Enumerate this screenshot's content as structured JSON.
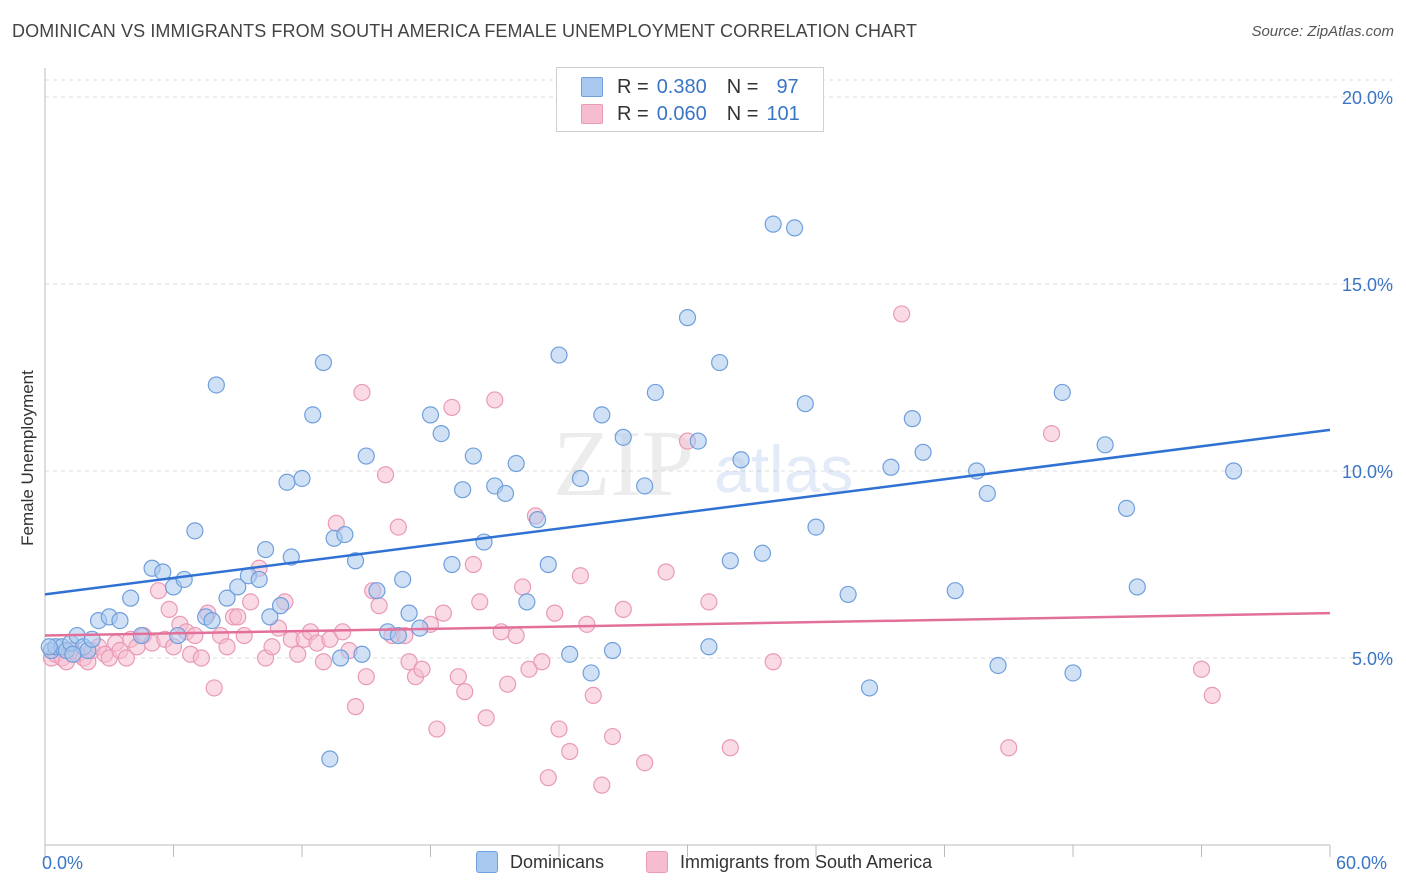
{
  "header": {
    "title": "DOMINICAN VS IMMIGRANTS FROM SOUTH AMERICA FEMALE UNEMPLOYMENT CORRELATION CHART",
    "source": "Source: ZipAtlas.com"
  },
  "stats": {
    "r_label": "R =",
    "n_label": "N =",
    "rows": [
      {
        "r": "0.380",
        "n": "97"
      },
      {
        "r": "0.060",
        "n": "101"
      }
    ]
  },
  "watermark": {
    "zip": "ZIP",
    "atlas": "atlas"
  },
  "colors": {
    "blue_fill": "#a9c8ef",
    "blue_stroke": "#6f9fdc",
    "blue_line": "#2f72d4",
    "pink_fill": "#f6bcd0",
    "pink_stroke": "#e99ab6",
    "pink_line": "#e2709a",
    "tick_text": "#3a75c4",
    "grid": "#dddddd"
  },
  "chart_data": {
    "type": "scatter",
    "title": "DOMINICAN VS IMMIGRANTS FROM SOUTH AMERICA FEMALE UNEMPLOYMENT CORRELATION CHART",
    "xlabel": "",
    "ylabel": "Female Unemployment",
    "xlim": [
      0,
      60
    ],
    "ylim": [
      0,
      20
    ],
    "x_tick_labels": [
      "0.0%",
      "60.0%"
    ],
    "y_ticks": [
      {
        "value": 5,
        "label": "5.0%"
      },
      {
        "value": 10,
        "label": "10.0%"
      },
      {
        "value": 15,
        "label": "15.0%"
      },
      {
        "value": 20,
        "label": "20.0%"
      }
    ],
    "grid": true,
    "legend_position": "bottom-center",
    "series": [
      {
        "name": "Dominicans",
        "color": "#a9c8ef",
        "r": 0.38,
        "n": 97,
        "trend": [
          [
            0,
            6.7
          ],
          [
            60,
            11.1
          ]
        ],
        "points": [
          [
            0.3,
            5.2
          ],
          [
            0.5,
            5.3
          ],
          [
            0.8,
            5.3
          ],
          [
            1.0,
            5.2
          ],
          [
            1.2,
            5.4
          ],
          [
            1.5,
            5.6
          ],
          [
            1.8,
            5.3
          ],
          [
            2.0,
            5.2
          ],
          [
            2.5,
            6.0
          ],
          [
            3.0,
            6.1
          ],
          [
            3.5,
            6.0
          ],
          [
            4.0,
            6.6
          ],
          [
            4.5,
            5.6
          ],
          [
            5.0,
            7.4
          ],
          [
            5.5,
            7.3
          ],
          [
            6.0,
            6.9
          ],
          [
            6.5,
            7.1
          ],
          [
            7.0,
            8.4
          ],
          [
            7.5,
            6.1
          ],
          [
            7.8,
            6.0
          ],
          [
            8.0,
            12.3
          ],
          [
            8.5,
            6.6
          ],
          [
            9.0,
            6.9
          ],
          [
            9.5,
            7.2
          ],
          [
            10.0,
            7.1
          ],
          [
            10.3,
            7.9
          ],
          [
            10.5,
            6.1
          ],
          [
            11.0,
            6.4
          ],
          [
            11.3,
            9.7
          ],
          [
            11.5,
            7.7
          ],
          [
            12.0,
            9.8
          ],
          [
            12.5,
            11.5
          ],
          [
            13.0,
            12.9
          ],
          [
            13.3,
            2.3
          ],
          [
            13.5,
            8.2
          ],
          [
            14.0,
            8.3
          ],
          [
            14.5,
            7.6
          ],
          [
            14.8,
            5.1
          ],
          [
            15.0,
            10.4
          ],
          [
            15.5,
            6.8
          ],
          [
            16.0,
            5.7
          ],
          [
            16.5,
            5.6
          ],
          [
            16.7,
            7.1
          ],
          [
            17.0,
            6.2
          ],
          [
            17.5,
            5.8
          ],
          [
            18.0,
            11.5
          ],
          [
            18.5,
            11.0
          ],
          [
            19.0,
            7.5
          ],
          [
            19.5,
            9.5
          ],
          [
            20.0,
            10.4
          ],
          [
            20.5,
            8.1
          ],
          [
            21.0,
            9.6
          ],
          [
            21.5,
            9.4
          ],
          [
            22.0,
            10.2
          ],
          [
            22.5,
            6.5
          ],
          [
            23.0,
            8.7
          ],
          [
            23.5,
            7.5
          ],
          [
            24.0,
            13.1
          ],
          [
            24.5,
            5.1
          ],
          [
            25.0,
            9.8
          ],
          [
            25.5,
            4.6
          ],
          [
            26.0,
            11.5
          ],
          [
            26.5,
            5.2
          ],
          [
            27.0,
            10.9
          ],
          [
            28.0,
            9.6
          ],
          [
            28.5,
            12.1
          ],
          [
            30.0,
            14.1
          ],
          [
            30.5,
            10.8
          ],
          [
            31.0,
            5.3
          ],
          [
            31.5,
            12.9
          ],
          [
            32.0,
            7.6
          ],
          [
            32.5,
            10.3
          ],
          [
            33.5,
            7.8
          ],
          [
            34.0,
            16.6
          ],
          [
            35.0,
            16.5
          ],
          [
            35.5,
            11.8
          ],
          [
            36.0,
            8.5
          ],
          [
            37.5,
            6.7
          ],
          [
            38.5,
            4.2
          ],
          [
            39.5,
            10.1
          ],
          [
            40.5,
            11.4
          ],
          [
            41.0,
            10.5
          ],
          [
            42.5,
            6.8
          ],
          [
            43.5,
            10.0
          ],
          [
            44.0,
            9.4
          ],
          [
            44.5,
            4.8
          ],
          [
            47.5,
            12.1
          ],
          [
            48.0,
            4.6
          ],
          [
            49.5,
            10.7
          ],
          [
            50.5,
            9.0
          ],
          [
            51.0,
            6.9
          ],
          [
            55.5,
            10.0
          ],
          [
            0.2,
            5.3
          ],
          [
            1.3,
            5.1
          ],
          [
            2.2,
            5.5
          ],
          [
            6.2,
            5.6
          ],
          [
            13.8,
            5.0
          ]
        ]
      },
      {
        "name": "Immigrants from South America",
        "color": "#f6bcd0",
        "r": 0.06,
        "n": 101,
        "trend": [
          [
            0,
            5.6
          ],
          [
            60,
            6.2
          ]
        ],
        "points": [
          [
            0.3,
            5.0
          ],
          [
            0.5,
            5.1
          ],
          [
            0.8,
            5.0
          ],
          [
            1.0,
            4.9
          ],
          [
            1.2,
            5.2
          ],
          [
            1.5,
            5.1
          ],
          [
            1.8,
            5.0
          ],
          [
            2.0,
            4.9
          ],
          [
            2.2,
            5.2
          ],
          [
            2.5,
            5.3
          ],
          [
            2.8,
            5.1
          ],
          [
            3.0,
            5.0
          ],
          [
            3.3,
            5.4
          ],
          [
            3.5,
            5.2
          ],
          [
            3.8,
            5.0
          ],
          [
            4.0,
            5.5
          ],
          [
            4.3,
            5.3
          ],
          [
            4.6,
            5.6
          ],
          [
            5.0,
            5.4
          ],
          [
            5.3,
            6.8
          ],
          [
            5.6,
            5.5
          ],
          [
            5.8,
            6.3
          ],
          [
            6.0,
            5.3
          ],
          [
            6.3,
            5.9
          ],
          [
            6.6,
            5.7
          ],
          [
            6.8,
            5.1
          ],
          [
            7.0,
            5.6
          ],
          [
            7.3,
            5.0
          ],
          [
            7.6,
            6.2
          ],
          [
            7.9,
            4.2
          ],
          [
            8.2,
            5.6
          ],
          [
            8.5,
            5.3
          ],
          [
            8.8,
            6.1
          ],
          [
            9.0,
            6.1
          ],
          [
            9.3,
            5.6
          ],
          [
            9.6,
            6.5
          ],
          [
            10.0,
            7.4
          ],
          [
            10.3,
            5.0
          ],
          [
            10.6,
            5.3
          ],
          [
            10.9,
            5.8
          ],
          [
            11.2,
            6.5
          ],
          [
            11.5,
            5.5
          ],
          [
            11.8,
            5.1
          ],
          [
            12.1,
            5.5
          ],
          [
            12.4,
            5.7
          ],
          [
            12.7,
            5.4
          ],
          [
            13.0,
            4.9
          ],
          [
            13.3,
            5.5
          ],
          [
            13.6,
            8.6
          ],
          [
            13.9,
            5.7
          ],
          [
            14.2,
            5.2
          ],
          [
            14.5,
            3.7
          ],
          [
            14.8,
            12.1
          ],
          [
            15.0,
            4.5
          ],
          [
            15.3,
            6.8
          ],
          [
            15.6,
            6.4
          ],
          [
            15.9,
            9.9
          ],
          [
            16.2,
            5.6
          ],
          [
            16.5,
            8.5
          ],
          [
            16.8,
            5.6
          ],
          [
            17.0,
            4.9
          ],
          [
            17.3,
            4.5
          ],
          [
            17.6,
            4.7
          ],
          [
            18.0,
            5.9
          ],
          [
            18.3,
            3.1
          ],
          [
            18.6,
            6.2
          ],
          [
            19.0,
            11.7
          ],
          [
            19.3,
            4.5
          ],
          [
            19.6,
            4.1
          ],
          [
            20.0,
            7.5
          ],
          [
            20.3,
            6.5
          ],
          [
            20.6,
            3.4
          ],
          [
            21.0,
            11.9
          ],
          [
            21.3,
            5.7
          ],
          [
            21.6,
            4.3
          ],
          [
            22.0,
            5.6
          ],
          [
            22.3,
            6.9
          ],
          [
            22.6,
            4.7
          ],
          [
            22.9,
            8.8
          ],
          [
            23.2,
            4.9
          ],
          [
            23.5,
            1.8
          ],
          [
            23.8,
            6.2
          ],
          [
            24.0,
            3.1
          ],
          [
            24.5,
            2.5
          ],
          [
            25.0,
            7.2
          ],
          [
            25.3,
            5.9
          ],
          [
            25.6,
            4.0
          ],
          [
            26.0,
            1.6
          ],
          [
            26.5,
            2.9
          ],
          [
            27.0,
            6.3
          ],
          [
            28.0,
            2.2
          ],
          [
            29.0,
            7.3
          ],
          [
            30.0,
            10.8
          ],
          [
            31.0,
            6.5
          ],
          [
            32.0,
            2.6
          ],
          [
            40.0,
            14.2
          ],
          [
            45.0,
            2.6
          ],
          [
            47.0,
            11.0
          ],
          [
            54.0,
            4.7
          ],
          [
            54.5,
            4.0
          ],
          [
            34.0,
            4.9
          ]
        ]
      }
    ]
  }
}
